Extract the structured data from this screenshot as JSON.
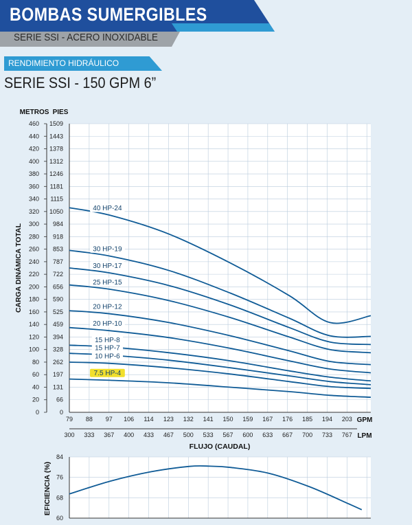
{
  "header": {
    "title": "BOMBAS SUMERGIBLES",
    "subtitle": "SERIE SSI - ACERO INOXIDABLE",
    "section": "RENDIMIENTO HIDRÁULICO",
    "chart_title": "SERIE SSI - 150 GPM 6”"
  },
  "colors": {
    "banner_dark": "#1f4f9d",
    "banner_light": "#2f9bd3",
    "curve": "#0f5b96",
    "grid": "#b9cbdc",
    "label_highlight": "#f1df2c"
  },
  "chart_data": [
    {
      "type": "line",
      "x_unit_primary": "GPM",
      "x_unit_secondary": "LPM",
      "xlabel": "FLUJO (CAUDAL)",
      "ylabel": "CARGA DINÁMICA TOTAL",
      "y_unit_primary": "METROS",
      "y_unit_secondary": "PIES",
      "xlim": [
        79,
        212
      ],
      "ylim": [
        0,
        460
      ],
      "x_ticks_gpm": [
        "79",
        "88",
        "97",
        "106",
        "114",
        "123",
        "132",
        "141",
        "150",
        "159",
        "167",
        "176",
        "185",
        "194",
        "203"
      ],
      "x_ticks_lpm": [
        "300",
        "333",
        "367",
        "400",
        "433",
        "467",
        "500",
        "533",
        "567",
        "600",
        "633",
        "667",
        "700",
        "733",
        "767"
      ],
      "y_ticks_m": [
        "0",
        "20",
        "40",
        "60",
        "80",
        "100",
        "120",
        "140",
        "160",
        "180",
        "200",
        "220",
        "240",
        "260",
        "280",
        "300",
        "320",
        "340",
        "360",
        "380",
        "400",
        "420",
        "440",
        "460"
      ],
      "y_ticks_ft": [
        "0",
        "66",
        "131",
        "197",
        "262",
        "328",
        "394",
        "459",
        "525",
        "590",
        "656",
        "722",
        "787",
        "853",
        "918",
        "984",
        "1050",
        "1115",
        "1181",
        "1246",
        "1312",
        "1378",
        "1443",
        "1509"
      ],
      "grid": true,
      "series": [
        {
          "name": "40 HP-24",
          "x": [
            79,
            97,
            123,
            150,
            176,
            194,
            212
          ],
          "y": [
            326,
            314,
            284,
            238,
            186,
            143,
            154
          ]
        },
        {
          "name": "30 HP-19",
          "x": [
            79,
            97,
            123,
            150,
            176,
            194,
            212
          ],
          "y": [
            258,
            249,
            226,
            190,
            150,
            122,
            121
          ]
        },
        {
          "name": "30 HP-17",
          "x": [
            79,
            97,
            123,
            150,
            176,
            194,
            212
          ],
          "y": [
            230,
            222,
            202,
            171,
            135,
            112,
            108
          ]
        },
        {
          "name": "25 HP-15",
          "x": [
            79,
            97,
            123,
            150,
            176,
            194,
            212
          ],
          "y": [
            203,
            196,
            178,
            151,
            120,
            100,
            95
          ]
        },
        {
          "name": "20 HP-12",
          "x": [
            79,
            97,
            123,
            150,
            176,
            194,
            212
          ],
          "y": [
            162,
            157,
            143,
            122,
            98,
            81,
            76
          ]
        },
        {
          "name": "20 HP-10",
          "x": [
            79,
            97,
            123,
            150,
            176,
            194,
            212
          ],
          "y": [
            135,
            130,
            119,
            102,
            82,
            69,
            63
          ]
        },
        {
          "name": "15 HP-8",
          "x": [
            79,
            97,
            123,
            150,
            176,
            194,
            212
          ],
          "y": [
            107,
            104,
            95,
            82,
            66,
            56,
            50
          ]
        },
        {
          "name": "15 HP-7",
          "x": [
            79,
            97,
            123,
            150,
            176,
            194,
            212
          ],
          "y": [
            94,
            91,
            83,
            71,
            58,
            49,
            44
          ]
        },
        {
          "name": "10 HP-6",
          "x": [
            79,
            97,
            123,
            150,
            176,
            194,
            212
          ],
          "y": [
            80,
            78,
            71,
            61,
            49,
            41,
            38
          ]
        },
        {
          "name": "7.5 HP-4",
          "x": [
            79,
            97,
            123,
            150,
            176,
            194,
            212
          ],
          "y": [
            53,
            51,
            47,
            40,
            33,
            27,
            24
          ],
          "highlight": true
        }
      ]
    },
    {
      "type": "line",
      "ylabel": "EFICIENCIA (%)",
      "xlim": [
        79,
        212
      ],
      "ylim": [
        60,
        84
      ],
      "y_ticks": [
        "60",
        "68",
        "76",
        "84"
      ],
      "grid": true,
      "series": [
        {
          "x": [
            79,
            97,
            115,
            132,
            141,
            150,
            167,
            185,
            203,
            208
          ],
          "y": [
            69.5,
            74.5,
            78.2,
            80.3,
            80.4,
            79.9,
            77.6,
            72.3,
            65.3,
            63.3
          ]
        }
      ]
    }
  ]
}
